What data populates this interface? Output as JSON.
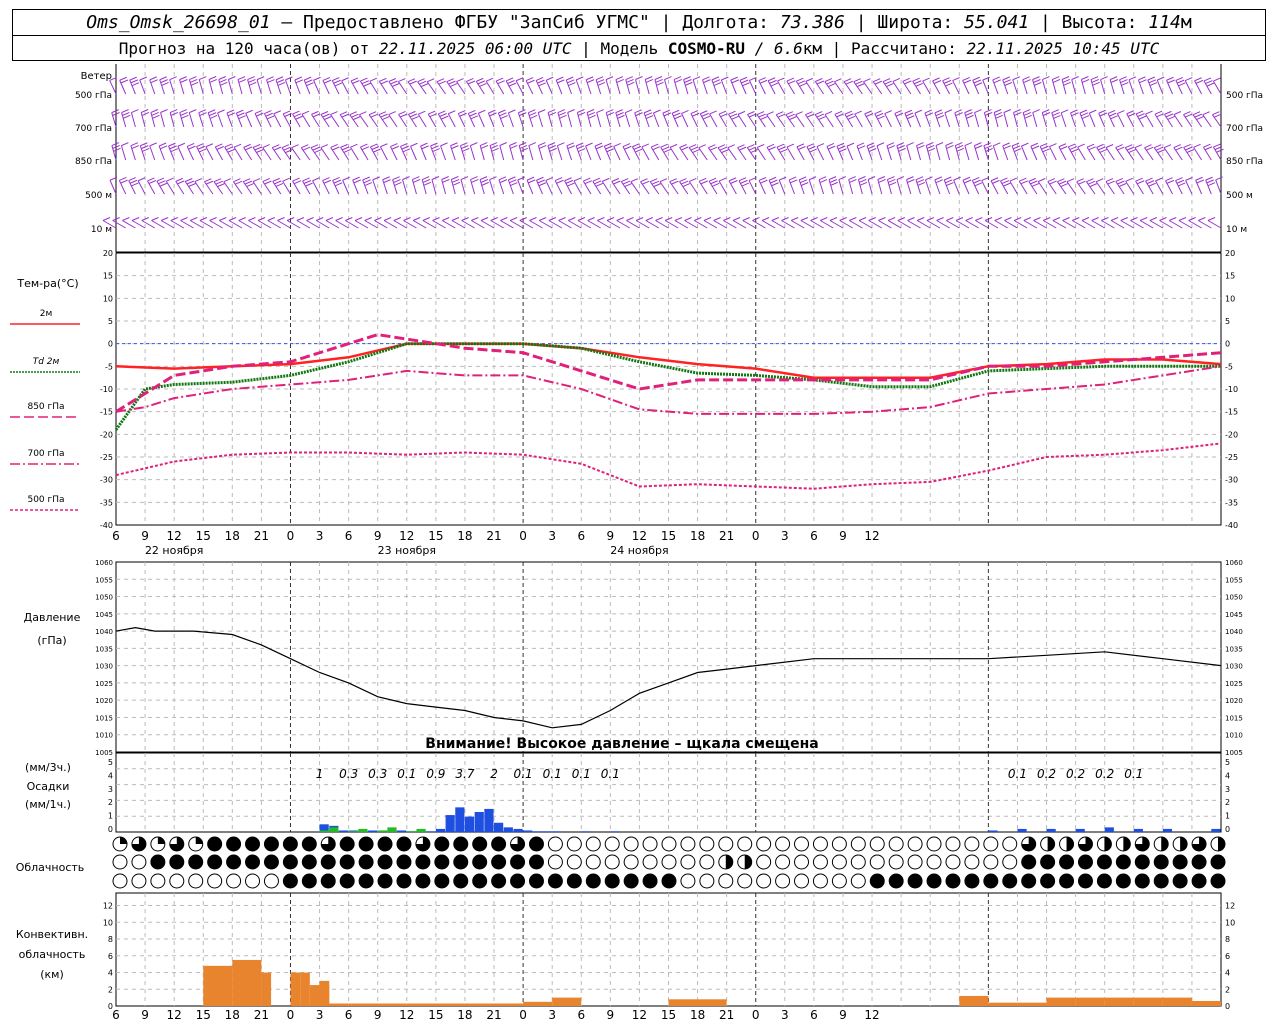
{
  "header": {
    "station": "Oms_Omsk_26698_01",
    "sep1": " – ",
    "provider": "Предоставлено ФГБУ \"ЗапСиб УГМС\"",
    "lon_label": "Долгота:",
    "lon_value": "73.386",
    "lat_label": "Широта:",
    "lat_value": "55.041",
    "alt_label": "Высота:",
    "alt_value": "114",
    "alt_unit": "м",
    "forecast_label": "Прогноз на 120 часа(ов) от",
    "forecast_start": "22.11.2025 06:00 UTC",
    "model_label": "Модель",
    "model_name": "COSMO-RU",
    "model_res": "/ 6.6",
    "model_res_unit": "км",
    "calc_label": "Рассчитано:",
    "calc_time": "22.11.2025 10:45 UTC"
  },
  "axes": {
    "hour_ticks": [
      "6",
      "9",
      "12",
      "15",
      "18",
      "21",
      "0",
      "3",
      "6",
      "9",
      "12",
      "15",
      "18",
      "21",
      "0",
      "3",
      "6",
      "9",
      "12",
      "15",
      "18",
      "21",
      "0",
      "3",
      "6",
      "9",
      "12"
    ],
    "dates": [
      "22 ноября",
      "23 ноября",
      "24 ноября"
    ]
  },
  "wind": {
    "title": "Ветер",
    "levels": [
      "500 гПа",
      "700 гПа",
      "850 гПа",
      "500 м",
      "10  м"
    ],
    "color": "#9933cc"
  },
  "temperature": {
    "title": "Тем-ра(°С)",
    "yticks": [
      "20",
      "15",
      "10",
      "5",
      "0",
      "-5",
      "-10",
      "-15",
      "-20",
      "-25",
      "-30",
      "-35",
      "-40"
    ],
    "legend": [
      {
        "label": "2м",
        "color": "#ff2222",
        "style": "solid"
      },
      {
        "label": "Td  2м",
        "color": "#117711",
        "style": "dotted"
      },
      {
        "label": "850 гПа",
        "color": "#e0207a",
        "style": "dash"
      },
      {
        "label": "700 гПа",
        "color": "#e0207a",
        "style": "dashdot"
      },
      {
        "label": "500 гПа",
        "color": "#e0207a",
        "style": "dot"
      }
    ]
  },
  "pressure": {
    "title": "Давление",
    "unit": "(гПа)",
    "yticks": [
      "1060",
      "1055",
      "1050",
      "1045",
      "1040",
      "1035",
      "1030",
      "1025",
      "1020",
      "1015",
      "1010",
      "1005"
    ],
    "warning": "Внимание! Высокое давление – щкала смещена"
  },
  "precip": {
    "unit3": "(мм/3ч.)",
    "title": "Осадки",
    "unit1": "(мм/1ч.)",
    "yticks": [
      "5",
      "4",
      "3",
      "2",
      "1",
      "0"
    ],
    "labels3h": [
      {
        "h": 21,
        "v": "1"
      },
      {
        "h": 24,
        "v": "0.3"
      },
      {
        "h": 27,
        "v": "0.3"
      },
      {
        "h": 30,
        "v": "0.1"
      },
      {
        "h": 33,
        "v": "0.9"
      },
      {
        "h": 36,
        "v": "3.7"
      },
      {
        "h": 39,
        "v": "2"
      },
      {
        "h": 42,
        "v": "0.1"
      },
      {
        "h": 45,
        "v": "0.1"
      },
      {
        "h": 48,
        "v": "0.1"
      },
      {
        "h": 51,
        "v": "0.1"
      },
      {
        "h": 93,
        "v": "0.1"
      },
      {
        "h": 96,
        "v": "0.2"
      },
      {
        "h": 99,
        "v": "0.2"
      },
      {
        "h": 102,
        "v": "0.2"
      },
      {
        "h": 105,
        "v": "0.1"
      }
    ],
    "colors": {
      "rain": "#1f4fe0",
      "snow": "#22bb22"
    }
  },
  "clouds": {
    "title": "Облачность"
  },
  "convective": {
    "title1": "Конвективн.",
    "title2": "облачность",
    "unit": "(км)",
    "yticks": [
      "12",
      "10",
      "8",
      "6",
      "4",
      "2",
      "0"
    ],
    "color": "#e8842e"
  },
  "chart_data": [
    {
      "type": "line",
      "title": "Тем-ра(°С)",
      "x_unit": "hours since 22.11.2025 06:00 UTC",
      "ylim": [
        -40,
        20
      ],
      "series": [
        {
          "name": "2м",
          "x": [
            0,
            6,
            12,
            18,
            24,
            30,
            36,
            42,
            48,
            54,
            60,
            66,
            72,
            78,
            84,
            90,
            96,
            102,
            108,
            114
          ],
          "values": [
            -5,
            -5.5,
            -5,
            -4.5,
            -3,
            0,
            0,
            0,
            -1,
            -3,
            -4.5,
            -5.5,
            -7.5,
            -7.5,
            -7.5,
            -5,
            -4.5,
            -3.5,
            -3.5,
            -4.5
          ]
        },
        {
          "name": "Td  2м",
          "x": [
            0,
            3,
            6,
            12,
            18,
            24,
            30,
            36,
            42,
            48,
            54,
            60,
            66,
            72,
            78,
            84,
            90,
            96,
            102,
            108,
            114
          ],
          "values": [
            -19,
            -10,
            -9,
            -8.5,
            -7,
            -4,
            0,
            0,
            0,
            -1,
            -4,
            -6.5,
            -7,
            -8,
            -9.5,
            -9.5,
            -6,
            -5.5,
            -5,
            -5,
            -5
          ]
        },
        {
          "name": "850 гПа",
          "x": [
            0,
            6,
            12,
            18,
            24,
            27,
            30,
            36,
            42,
            48,
            54,
            60,
            66,
            72,
            78,
            84,
            90,
            96,
            102,
            108,
            114
          ],
          "values": [
            -15,
            -7,
            -5,
            -4,
            0,
            2,
            1,
            -1,
            -2,
            -6,
            -10,
            -8,
            -8,
            -8,
            -8,
            -8,
            -5,
            -5,
            -4,
            -3,
            -2
          ]
        },
        {
          "name": "700 гПа",
          "x": [
            0,
            3,
            6,
            12,
            18,
            24,
            30,
            36,
            42,
            48,
            54,
            60,
            66,
            72,
            78,
            84,
            90,
            96,
            102,
            108,
            114
          ],
          "values": [
            -15,
            -14,
            -12,
            -10,
            -9,
            -8,
            -6,
            -7,
            -7,
            -10,
            -14.5,
            -15.5,
            -15.5,
            -15.5,
            -15,
            -14,
            -11,
            -10,
            -9,
            -7,
            -5
          ]
        },
        {
          "name": "500 гПа",
          "x": [
            0,
            6,
            12,
            18,
            24,
            30,
            36,
            42,
            48,
            54,
            60,
            66,
            72,
            78,
            84,
            90,
            96,
            102,
            108,
            114
          ],
          "values": [
            -29,
            -26,
            -24.5,
            -24,
            -24,
            -24.5,
            -24,
            -24.5,
            -26.5,
            -31.5,
            -31,
            -31.5,
            -32,
            -31,
            -30.5,
            -28,
            -25,
            -24.5,
            -23.5,
            -22
          ]
        }
      ]
    },
    {
      "type": "line",
      "title": "Давление",
      "x_unit": "hours since 22.11.2025 06:00 UTC",
      "ylim": [
        1005,
        1060
      ],
      "series": [
        {
          "x": [
            0,
            2,
            4,
            8,
            12,
            15,
            18,
            21,
            24,
            27,
            30,
            33,
            36,
            39,
            42,
            45,
            48,
            51,
            54,
            57,
            60,
            63,
            66,
            72,
            78,
            84,
            90,
            96,
            102,
            108,
            114
          ],
          "values": [
            1040,
            1041,
            1040,
            1040,
            1039,
            1036,
            1032,
            1028,
            1025,
            1021,
            1019,
            1018,
            1017,
            1015,
            1014,
            1012,
            1013,
            1017,
            1022,
            1025,
            1028,
            1029,
            1030,
            1032,
            1032,
            1032,
            1032,
            1033,
            1034,
            1032,
            1030
          ]
        }
      ]
    },
    {
      "type": "bar",
      "title": "Осадки",
      "x_unit": "hours since 22.11.2025 06:00 UTC",
      "ylim": [
        0,
        5
      ],
      "series": [
        {
          "name": "rain",
          "x": [
            21,
            22,
            23,
            24,
            25,
            26,
            27,
            28,
            29,
            30,
            31,
            32,
            33,
            34,
            35,
            36,
            37,
            38,
            39,
            40,
            41,
            42,
            43,
            44,
            45,
            48,
            51,
            90,
            93,
            96,
            99,
            102,
            105,
            108,
            113
          ],
          "values": [
            0.5,
            0.4,
            0.1,
            0.1,
            0.1,
            0.1,
            0.1,
            0.1,
            0.1,
            0.05,
            0.05,
            0.05,
            0.2,
            1.1,
            1.6,
            1.0,
            1.3,
            1.5,
            0.6,
            0.3,
            0.2,
            0.1,
            0.05,
            0.05,
            0.05,
            0.05,
            0.05,
            0.1,
            0.2,
            0.2,
            0.2,
            0.3,
            0.2,
            0.2,
            0.2
          ]
        },
        {
          "name": "snow",
          "x": [
            21,
            22,
            24,
            25,
            27,
            28,
            30,
            31
          ],
          "values": [
            0.1,
            0.3,
            0.05,
            0.2,
            0.1,
            0.3,
            0.05,
            0.2
          ]
        }
      ]
    },
    {
      "type": "bar",
      "title": "Конвективн. облачность",
      "x_unit": "hours since 22.11.2025 06:00 UTC",
      "ylim": [
        0,
        13
      ],
      "series": [
        {
          "x": [
            9,
            12,
            15,
            18,
            19,
            20,
            21
          ],
          "widths": [
            3,
            3,
            1,
            1,
            1,
            2,
            1
          ],
          "values": [
            4.8,
            5.5,
            4,
            4,
            4,
            2.5,
            3
          ]
        },
        {
          "x": [
            21.5,
            24,
            30,
            36,
            42,
            45,
            48,
            57,
            63,
            75,
            78,
            81,
            84,
            87,
            90,
            93,
            96,
            99,
            102,
            105,
            108,
            111
          ],
          "widths": [
            2.5,
            6,
            6,
            6,
            3,
            3,
            9,
            6,
            12,
            3,
            3,
            3,
            3,
            3,
            3,
            3,
            3,
            3,
            3,
            3,
            3,
            3
          ],
          "values": [
            0.3,
            0.3,
            0.3,
            0.3,
            0.5,
            1,
            0,
            0.8,
            0,
            0,
            0,
            0,
            0,
            1.2,
            0.4,
            0.4,
            1,
            1,
            1,
            1,
            1,
            0.6
          ]
        }
      ]
    }
  ]
}
